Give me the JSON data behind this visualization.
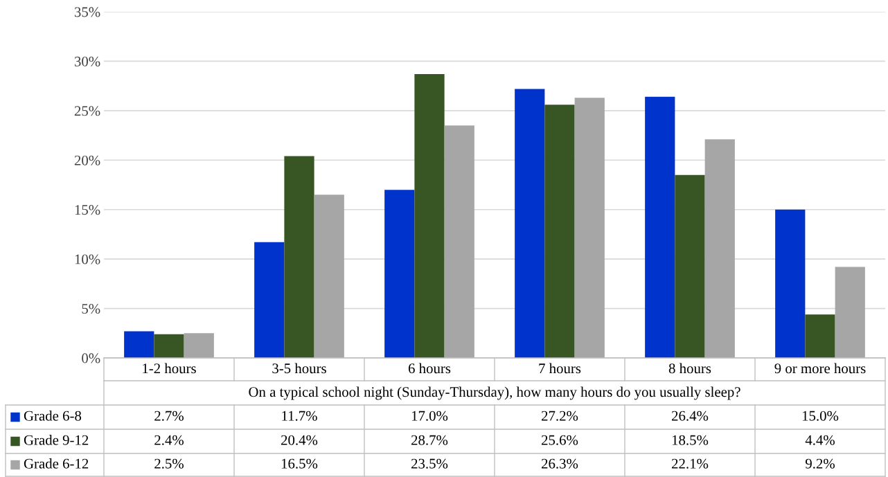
{
  "chart_data": {
    "type": "bar",
    "xlabel": "On a typical school night (Sunday-Thursday), how many hours do you usually sleep?",
    "categories": [
      "1-2 hours",
      "3-5 hours",
      "6 hours",
      "7 hours",
      "8 hours",
      "9 or more hours"
    ],
    "series": [
      {
        "name": "Grade 6-8",
        "color": "#0033cc",
        "values": [
          2.7,
          11.7,
          17.0,
          27.2,
          26.4,
          15.0
        ],
        "value_labels": [
          "2.7%",
          "11.7%",
          "17.0%",
          "27.2%",
          "26.4%",
          "15.0%"
        ]
      },
      {
        "name": "Grade 9-12",
        "color": "#375623",
        "values": [
          2.4,
          20.4,
          28.7,
          25.6,
          18.5,
          4.4
        ],
        "value_labels": [
          "2.4%",
          "20.4%",
          "28.7%",
          "25.6%",
          "18.5%",
          "4.4%"
        ]
      },
      {
        "name": "Grade 6-12",
        "color": "#a6a6a6",
        "values": [
          2.5,
          16.5,
          23.5,
          26.3,
          22.1,
          9.2
        ],
        "value_labels": [
          "2.5%",
          "16.5%",
          "23.5%",
          "26.3%",
          "22.1%",
          "9.2%"
        ]
      }
    ],
    "ylim": [
      0,
      35
    ],
    "yticks": [
      {
        "value": 0,
        "label": "0%"
      },
      {
        "value": 5,
        "label": "5%"
      },
      {
        "value": 10,
        "label": "10%"
      },
      {
        "value": 15,
        "label": "15%"
      },
      {
        "value": 20,
        "label": "20%"
      },
      {
        "value": 25,
        "label": "25%"
      },
      {
        "value": 30,
        "label": "30%"
      },
      {
        "value": 35,
        "label": "35%"
      }
    ],
    "grid": "y",
    "legend": "bottom left"
  }
}
